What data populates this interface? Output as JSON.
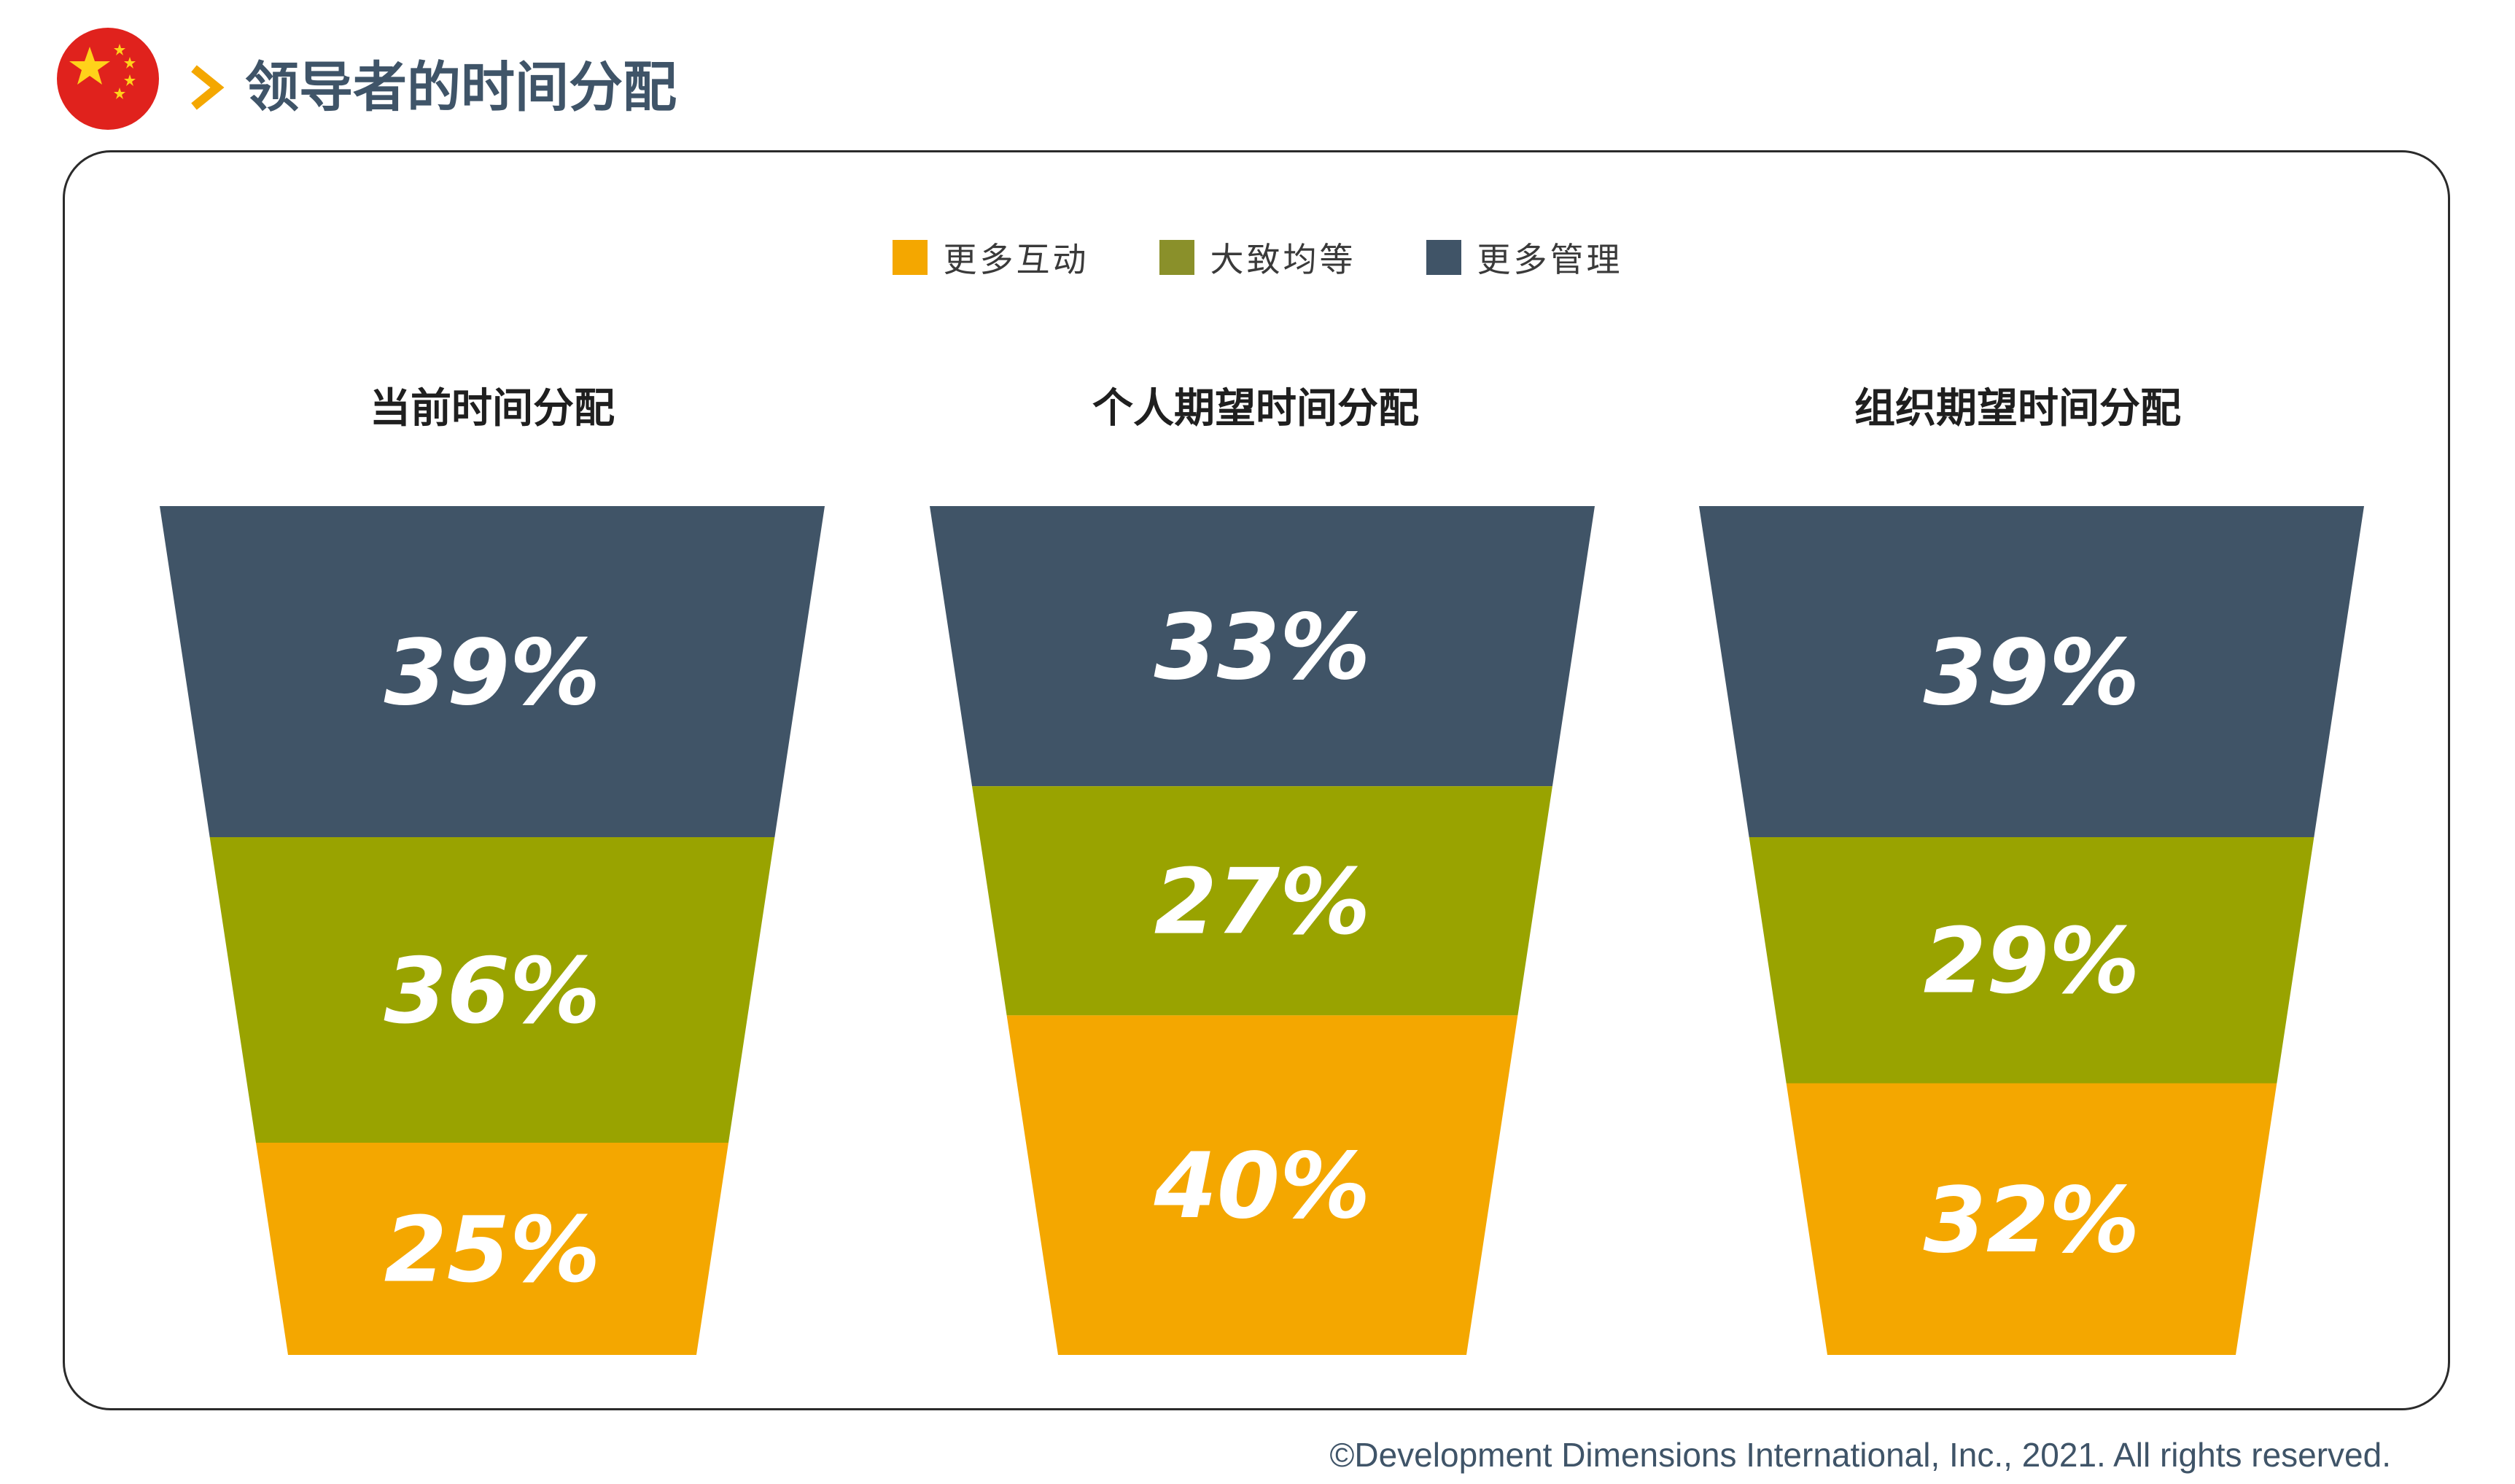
{
  "header": {
    "flag_icon": "china-flag-icon",
    "chevron_icon": "chevron-right-icon",
    "title": "领导者的时间分配"
  },
  "colors": {
    "more_interaction": "#f4a700",
    "roughly_equal": "#99a300",
    "more_management": "#405467",
    "legend_roughly_equal": "#8a902a",
    "accent_chevron": "#f4a700",
    "flag_red": "#e0221d",
    "flag_star": "#ffd21a"
  },
  "legend": [
    {
      "label": "更多互动",
      "color": "#f4a700"
    },
    {
      "label": "大致均等",
      "color": "#8a902a"
    },
    {
      "label": "更多管理",
      "color": "#405467"
    }
  ],
  "chart_data": [
    {
      "type": "funnel",
      "title": "当前时间分配",
      "series": [
        {
          "name": "更多管理",
          "value": 39,
          "label": "39%"
        },
        {
          "name": "大致均等",
          "value": 36,
          "label": "36%"
        },
        {
          "name": "更多互动",
          "value": 25,
          "label": "25%"
        }
      ]
    },
    {
      "type": "funnel",
      "title": "个人期望时间分配",
      "series": [
        {
          "name": "更多管理",
          "value": 33,
          "label": "33%"
        },
        {
          "name": "大致均等",
          "value": 27,
          "label": "27%"
        },
        {
          "name": "更多互动",
          "value": 40,
          "label": "40%"
        }
      ]
    },
    {
      "type": "funnel",
      "title": "组织期望时间分配",
      "series": [
        {
          "name": "更多管理",
          "value": 39,
          "label": "39%"
        },
        {
          "name": "大致均等",
          "value": 29,
          "label": "29%"
        },
        {
          "name": "更多互动",
          "value": 32,
          "label": "32%"
        }
      ]
    }
  ],
  "footer": {
    "copyright": "©Development Dimensions International, Inc., 2021. All rights reserved."
  }
}
